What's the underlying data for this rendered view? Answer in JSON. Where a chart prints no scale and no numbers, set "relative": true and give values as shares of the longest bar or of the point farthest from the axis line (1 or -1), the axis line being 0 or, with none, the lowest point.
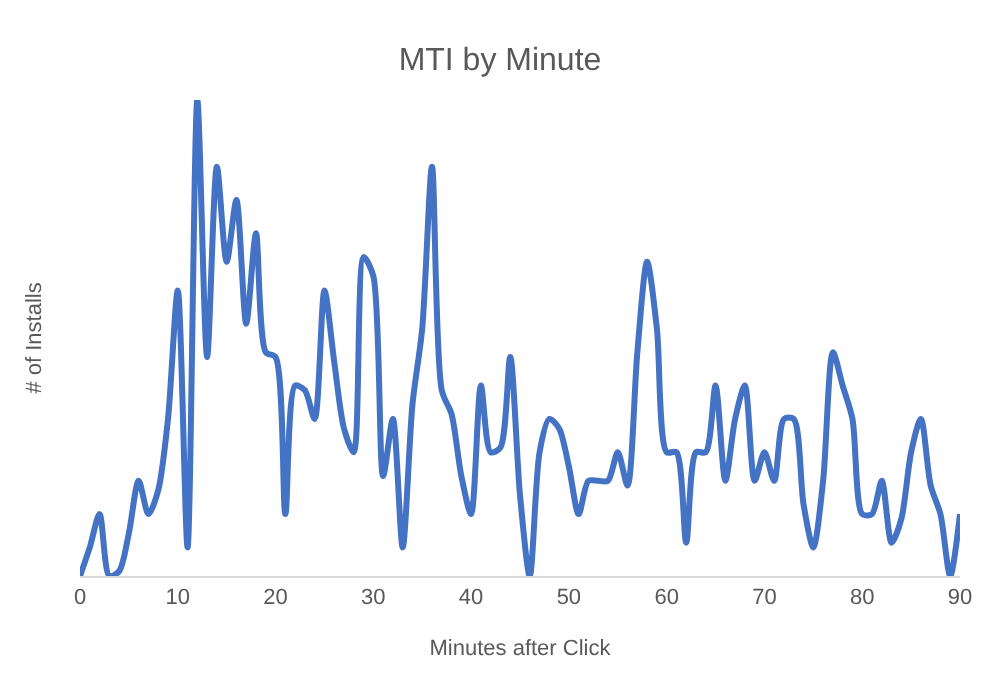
{
  "chart_data": {
    "type": "line",
    "title": "MTI by Minute",
    "xlabel": "Minutes after Click",
    "ylabel": "# of Installs",
    "relative": true,
    "xlim": [
      0,
      90
    ],
    "xticks": [
      0,
      10,
      20,
      30,
      40,
      50,
      60,
      70,
      80,
      90
    ],
    "grid": false,
    "marker": "none",
    "line_style": "solid",
    "x": [
      0,
      1,
      2,
      3,
      4,
      5,
      6,
      7,
      8,
      9,
      10,
      11,
      12,
      13,
      14,
      15,
      16,
      17,
      18,
      19,
      20,
      21,
      22,
      23,
      24,
      25,
      26,
      27,
      28,
      29,
      30,
      31,
      32,
      33,
      34,
      35,
      36,
      37,
      38,
      39,
      40,
      41,
      42,
      43,
      44,
      45,
      46,
      47,
      48,
      49,
      50,
      51,
      52,
      53,
      54,
      55,
      56,
      57,
      58,
      59,
      60,
      61,
      62,
      63,
      64,
      65,
      66,
      67,
      68,
      69,
      70,
      71,
      72,
      73,
      74,
      75,
      76,
      77,
      78,
      79,
      80,
      81,
      82,
      83,
      84,
      85,
      86,
      87,
      88,
      89,
      90
    ],
    "series": [
      {
        "color": "#4472c4",
        "values": [
          0,
          0.06,
          0.13,
          0,
          0.01,
          0.09,
          0.2,
          0.13,
          0.18,
          0.33,
          0.6,
          0.06,
          1,
          0.46,
          0.86,
          0.66,
          0.79,
          0.53,
          0.72,
          0.47,
          0.46,
          0.13,
          0.4,
          0.39,
          0.33,
          0.6,
          0.45,
          0.31,
          0.26,
          0.67,
          0.63,
          0.21,
          0.33,
          0.06,
          0.36,
          0.52,
          0.86,
          0.39,
          0.34,
          0.21,
          0.13,
          0.4,
          0.26,
          0.27,
          0.46,
          0.17,
          0,
          0.26,
          0.33,
          0.31,
          0.23,
          0.13,
          0.2,
          0.2,
          0.2,
          0.26,
          0.19,
          0.47,
          0.66,
          0.52,
          0.26,
          0.26,
          0.07,
          0.26,
          0.26,
          0.4,
          0.2,
          0.33,
          0.4,
          0.2,
          0.26,
          0.2,
          0.33,
          0.33,
          0.15,
          0.06,
          0.2,
          0.47,
          0.4,
          0.33,
          0.13,
          0.13,
          0.2,
          0.07,
          0.12,
          0.26,
          0.33,
          0.19,
          0.13,
          0,
          0.13
        ]
      }
    ]
  }
}
